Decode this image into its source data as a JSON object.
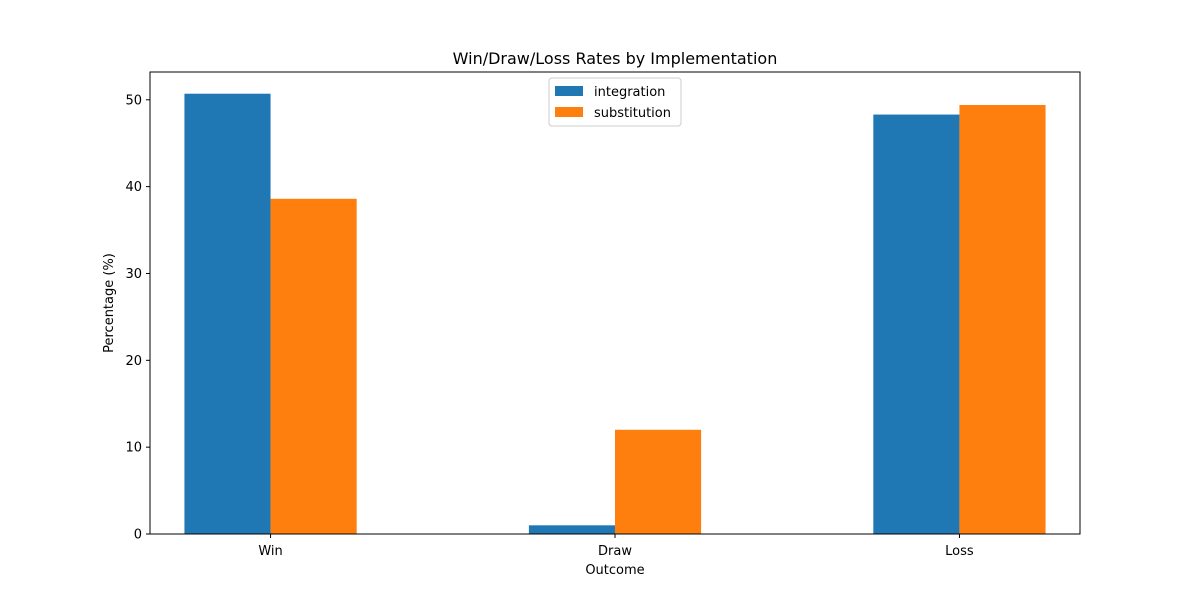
{
  "chart_data": {
    "type": "bar",
    "title": "Win/Draw/Loss Rates by Implementation",
    "xlabel": "Outcome",
    "ylabel": "Percentage (%)",
    "categories": [
      "Win",
      "Draw",
      "Loss"
    ],
    "series": [
      {
        "name": "integration",
        "color": "#1f77b4",
        "values": [
          50.7,
          1.0,
          48.3
        ]
      },
      {
        "name": "substitution",
        "color": "#ff7f0e",
        "values": [
          38.6,
          12.0,
          49.4
        ]
      }
    ],
    "ylim": [
      0,
      53.2
    ],
    "yticks": [
      0,
      10,
      20,
      30,
      40,
      50
    ],
    "grid": false,
    "legend_position": "top-center"
  }
}
